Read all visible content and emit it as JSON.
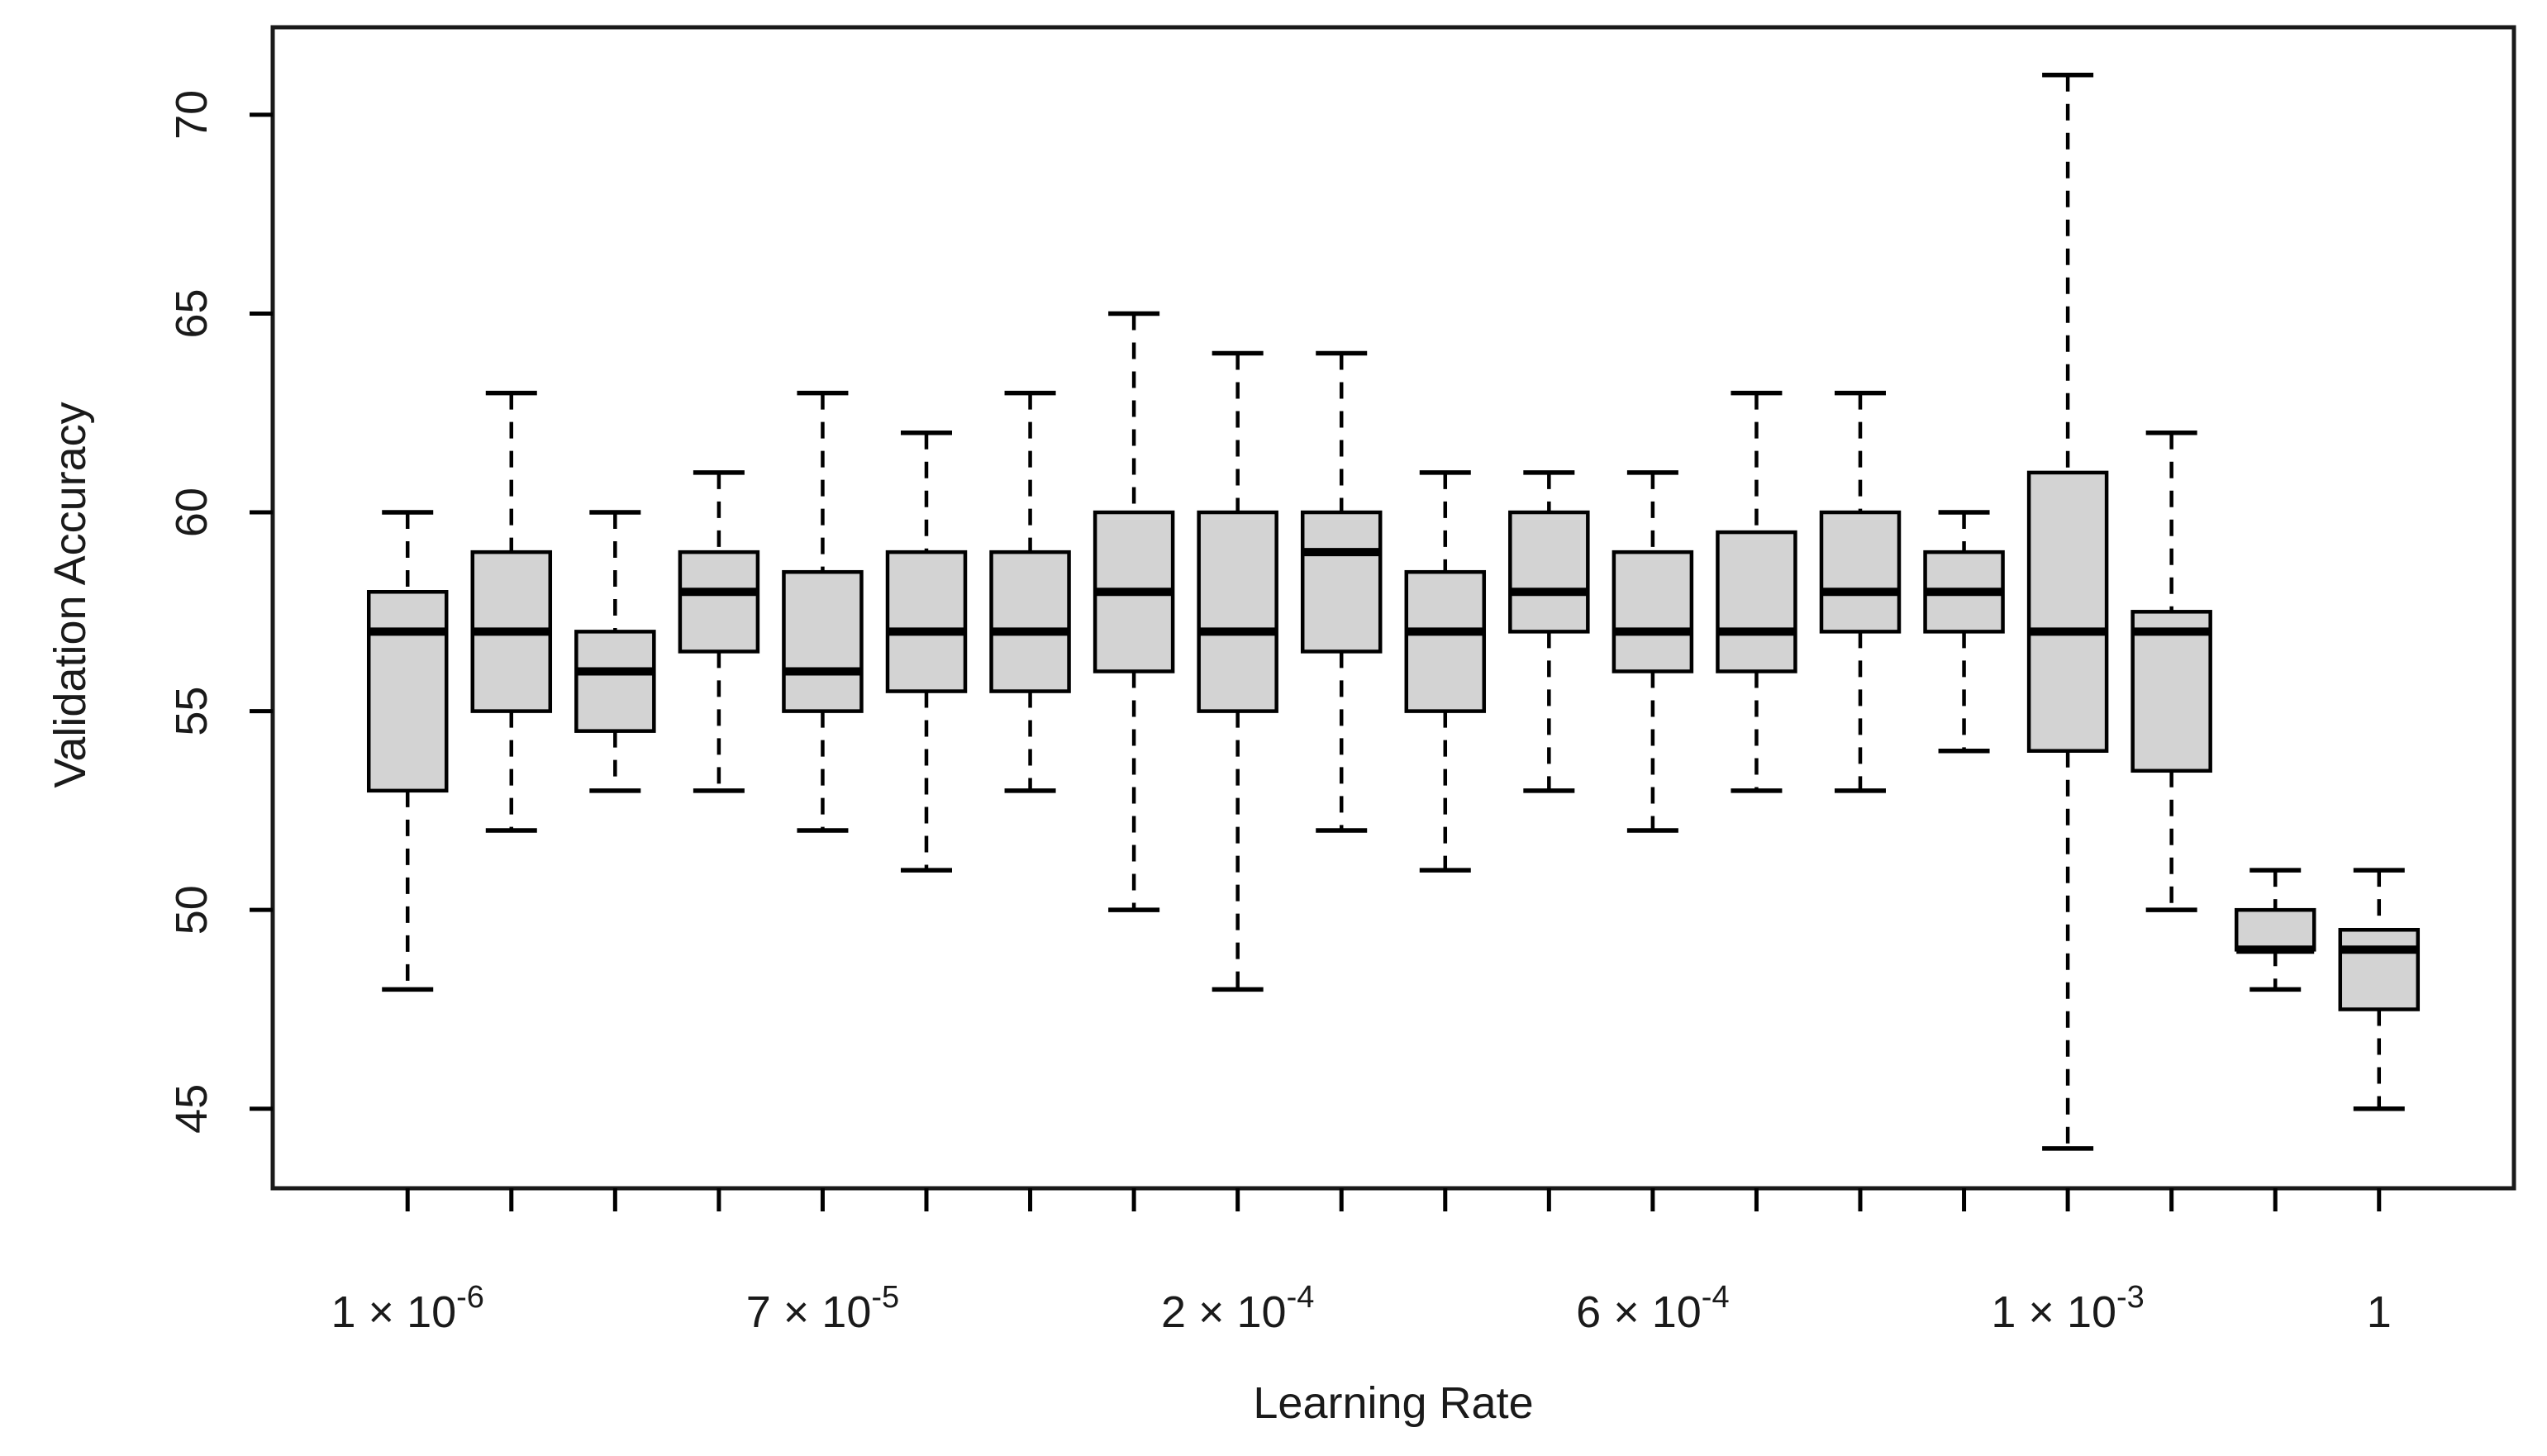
{
  "chart_data": {
    "type": "boxplot",
    "title": "",
    "xlabel": "Learning Rate",
    "ylabel": "Validation Accuracy",
    "ylim": [
      43.0,
      72.2
    ],
    "xlim": [
      -0.3,
      21.3
    ],
    "yticks": [
      45,
      50,
      55,
      60,
      65,
      70
    ],
    "grid": false,
    "legend": "none",
    "colors": {
      "box_fill": "#d3d3d3",
      "line": "#000000",
      "background": "#ffffff"
    },
    "x_tick_labels": [
      {
        "position": 1,
        "base": "1 × 10",
        "exp": "-6"
      },
      {
        "position": 5,
        "base": "7 × 10",
        "exp": "-5"
      },
      {
        "position": 9,
        "base": "2 × 10",
        "exp": "-4"
      },
      {
        "position": 13,
        "base": "6 × 10",
        "exp": "-4"
      },
      {
        "position": 17,
        "base": "1 × 10",
        "exp": "-3"
      },
      {
        "position": 20,
        "base": "1",
        "exp": ""
      }
    ],
    "boxes": [
      {
        "position": 1,
        "min": 48,
        "q1": 53,
        "median": 57,
        "q3": 58,
        "max": 60
      },
      {
        "position": 2,
        "min": 52,
        "q1": 55,
        "median": 57,
        "q3": 59,
        "max": 63
      },
      {
        "position": 3,
        "min": 53,
        "q1": 54.5,
        "median": 56,
        "q3": 57,
        "max": 60
      },
      {
        "position": 4,
        "min": 53,
        "q1": 56.5,
        "median": 58,
        "q3": 59,
        "max": 61
      },
      {
        "position": 5,
        "min": 52,
        "q1": 55,
        "median": 56,
        "q3": 58.5,
        "max": 63
      },
      {
        "position": 6,
        "min": 51,
        "q1": 55.5,
        "median": 57,
        "q3": 59,
        "max": 62
      },
      {
        "position": 7,
        "min": 53,
        "q1": 55.5,
        "median": 57,
        "q3": 59,
        "max": 63
      },
      {
        "position": 8,
        "min": 50,
        "q1": 56,
        "median": 58,
        "q3": 60,
        "max": 65
      },
      {
        "position": 9,
        "min": 48,
        "q1": 55,
        "median": 57,
        "q3": 60,
        "max": 64
      },
      {
        "position": 10,
        "min": 52,
        "q1": 56.5,
        "median": 59,
        "q3": 60,
        "max": 64
      },
      {
        "position": 11,
        "min": 51,
        "q1": 55,
        "median": 57,
        "q3": 58.5,
        "max": 61
      },
      {
        "position": 12,
        "min": 53,
        "q1": 57,
        "median": 58,
        "q3": 60,
        "max": 61
      },
      {
        "position": 13,
        "min": 52,
        "q1": 56,
        "median": 57,
        "q3": 59,
        "max": 61
      },
      {
        "position": 14,
        "min": 53,
        "q1": 56,
        "median": 57,
        "q3": 59.5,
        "max": 63
      },
      {
        "position": 15,
        "min": 53,
        "q1": 57,
        "median": 58,
        "q3": 60,
        "max": 63
      },
      {
        "position": 16,
        "min": 54,
        "q1": 57,
        "median": 58,
        "q3": 59,
        "max": 60
      },
      {
        "position": 17,
        "min": 44,
        "q1": 54,
        "median": 57,
        "q3": 61,
        "max": 71
      },
      {
        "position": 18,
        "min": 50,
        "q1": 53.5,
        "median": 57,
        "q3": 57.5,
        "max": 62
      },
      {
        "position": 19,
        "min": 48,
        "q1": 49,
        "median": 49,
        "q3": 50,
        "max": 51
      },
      {
        "position": 20,
        "min": 45,
        "q1": 47.5,
        "median": 49,
        "q3": 49.5,
        "max": 51
      }
    ]
  }
}
